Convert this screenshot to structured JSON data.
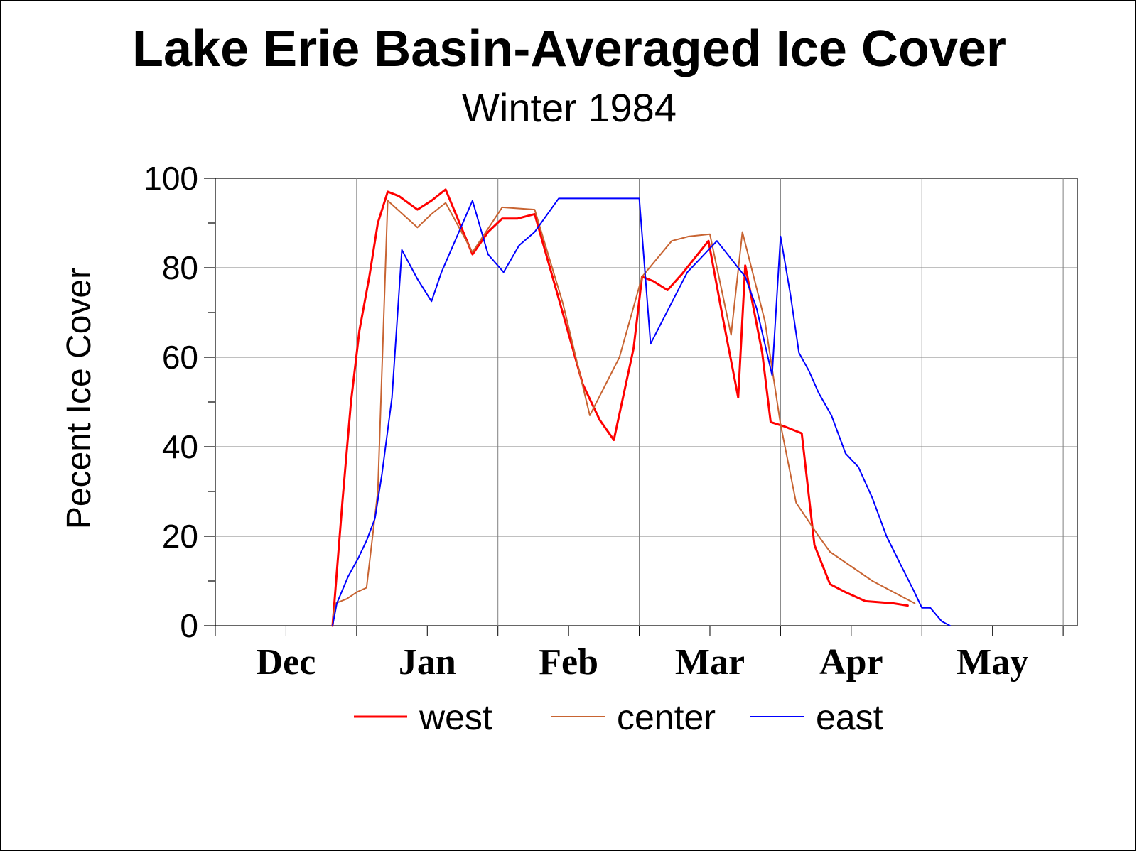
{
  "chart_data": {
    "type": "line",
    "title": "Lake Erie Basin-Averaged Ice Cover",
    "subtitle": "Winter 1984",
    "xlabel": "",
    "ylabel": "Pecent Ice Cover",
    "ylim": [
      0,
      100
    ],
    "yticks": [
      "0",
      "20",
      "40",
      "60",
      "80",
      "100"
    ],
    "months": [
      "Dec",
      "Jan",
      "Feb",
      "Mar",
      "Apr",
      "May"
    ],
    "grid": true,
    "legend_position": "bottom",
    "series": [
      {
        "name": "west",
        "color": "#ff0000",
        "points": [
          [
            8.3,
            0
          ],
          [
            8.6,
            12
          ],
          [
            9,
            28
          ],
          [
            9.6,
            50
          ],
          [
            10.2,
            66
          ],
          [
            10.9,
            78
          ],
          [
            11.5,
            90
          ],
          [
            12.2,
            97
          ],
          [
            13,
            96
          ],
          [
            14.3,
            93
          ],
          [
            15.3,
            95
          ],
          [
            16.3,
            97.5
          ],
          [
            18.2,
            83
          ],
          [
            19.3,
            88
          ],
          [
            20.3,
            91
          ],
          [
            21.4,
            91
          ],
          [
            22.6,
            92
          ],
          [
            24.4,
            72
          ],
          [
            26,
            54
          ],
          [
            27.2,
            46
          ],
          [
            28.2,
            41.5
          ],
          [
            29.6,
            62
          ],
          [
            30.2,
            78
          ],
          [
            31,
            77
          ],
          [
            32,
            75
          ],
          [
            33,
            78.5
          ],
          [
            34.9,
            86
          ],
          [
            35.9,
            69
          ],
          [
            37,
            51
          ],
          [
            37.5,
            80.5
          ],
          [
            38.7,
            61
          ],
          [
            39.3,
            45.5
          ],
          [
            40.3,
            44.5
          ],
          [
            41.5,
            43
          ],
          [
            42.4,
            18
          ],
          [
            43.5,
            9.3
          ],
          [
            44.6,
            7.5
          ],
          [
            46,
            5.5
          ],
          [
            48,
            5
          ],
          [
            49,
            4.5
          ]
        ]
      },
      {
        "name": "center",
        "color": "#c86432",
        "points": [
          [
            8.3,
            0
          ],
          [
            8.5,
            5
          ],
          [
            9.3,
            6
          ],
          [
            10,
            7.5
          ],
          [
            10.7,
            8.5
          ],
          [
            11.5,
            30
          ],
          [
            12.2,
            95
          ],
          [
            14.3,
            89
          ],
          [
            15.3,
            92
          ],
          [
            16.3,
            94.5
          ],
          [
            18.2,
            83.5
          ],
          [
            20.3,
            93.5
          ],
          [
            22.6,
            93
          ],
          [
            24.6,
            72
          ],
          [
            26.5,
            47
          ],
          [
            28.6,
            60
          ],
          [
            30.2,
            78
          ],
          [
            32.3,
            86
          ],
          [
            33.5,
            87
          ],
          [
            35,
            87.5
          ],
          [
            36.5,
            65
          ],
          [
            37.3,
            88
          ],
          [
            38.9,
            68
          ],
          [
            40,
            45
          ],
          [
            41.1,
            27.5
          ],
          [
            42.7,
            20
          ],
          [
            43.5,
            16.5
          ],
          [
            46.5,
            10
          ],
          [
            49.5,
            5
          ]
        ]
      },
      {
        "name": "east",
        "color": "#0000ff",
        "points": [
          [
            8.3,
            0
          ],
          [
            8.6,
            5
          ],
          [
            9.4,
            11
          ],
          [
            10.1,
            15
          ],
          [
            10.7,
            19
          ],
          [
            11.3,
            24
          ],
          [
            11.8,
            34
          ],
          [
            12.5,
            51
          ],
          [
            13.2,
            84
          ],
          [
            14.3,
            77.5
          ],
          [
            15.3,
            72.5
          ],
          [
            16,
            79
          ],
          [
            18.2,
            95
          ],
          [
            19.3,
            83
          ],
          [
            20.4,
            79
          ],
          [
            21.5,
            85
          ],
          [
            22.6,
            88
          ],
          [
            24.3,
            95.5
          ],
          [
            26,
            95.5
          ],
          [
            28.2,
            95.5
          ],
          [
            30,
            95.5
          ],
          [
            30.8,
            63
          ],
          [
            32.1,
            71
          ],
          [
            33.4,
            79
          ],
          [
            34.3,
            82
          ],
          [
            35.5,
            86
          ],
          [
            36.5,
            82
          ],
          [
            37.5,
            78
          ],
          [
            38.3,
            71
          ],
          [
            39.4,
            56
          ],
          [
            40,
            87
          ],
          [
            40.7,
            74
          ],
          [
            41.3,
            61
          ],
          [
            42,
            57
          ],
          [
            42.7,
            52
          ],
          [
            43.6,
            47
          ],
          [
            44.6,
            38.5
          ],
          [
            45.5,
            35.5
          ],
          [
            46.5,
            28.5
          ],
          [
            47.5,
            20
          ],
          [
            48.6,
            13
          ],
          [
            49.4,
            8
          ],
          [
            50,
            4
          ],
          [
            50.6,
            4
          ],
          [
            51.4,
            1
          ],
          [
            52,
            0
          ]
        ]
      }
    ]
  }
}
